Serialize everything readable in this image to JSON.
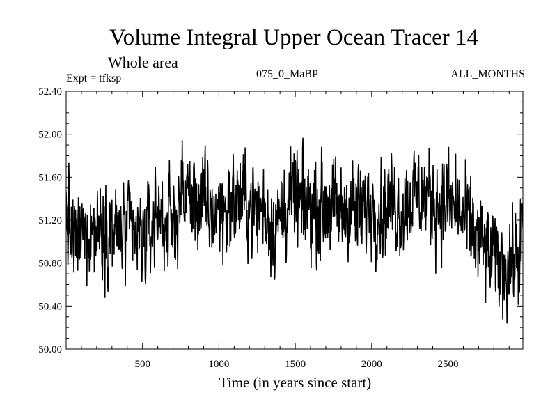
{
  "chart_data": {
    "type": "line",
    "title": "Volume Integral Upper Ocean Tracer 14",
    "subtitle": "Whole area",
    "info_left": "Expt = tfksp",
    "info_center": "075_0_MaBP",
    "info_right": "ALL_MONTHS",
    "xlabel": "Time (in years since start)",
    "ylabel": "",
    "xlim": [
      0,
      2990
    ],
    "ylim": [
      50.0,
      52.4
    ],
    "x_ticks": [
      500,
      1000,
      1500,
      2000,
      2500
    ],
    "x_tick_labels": [
      "500",
      "1000",
      "1500",
      "2000",
      "2500"
    ],
    "y_ticks": [
      50.0,
      50.4,
      50.8,
      51.2,
      51.6,
      52.0,
      52.4
    ],
    "y_tick_labels": [
      "50.00",
      "50.40",
      "50.80",
      "51.20",
      "51.60",
      "52.00",
      "52.40"
    ],
    "grid": false,
    "line_color": "#000000",
    "series": [
      {
        "name": "Volume Integral Upper Ocean Tracer 14",
        "x": [
          0,
          50,
          100,
          150,
          200,
          250,
          300,
          350,
          400,
          450,
          500,
          550,
          600,
          650,
          700,
          750,
          800,
          850,
          900,
          950,
          1000,
          1050,
          1100,
          1150,
          1200,
          1250,
          1300,
          1350,
          1400,
          1450,
          1500,
          1550,
          1600,
          1650,
          1700,
          1750,
          1800,
          1850,
          1900,
          1950,
          2000,
          2050,
          2100,
          2150,
          2200,
          2250,
          2300,
          2350,
          2400,
          2450,
          2500,
          2550,
          2600,
          2650,
          2700,
          2750,
          2800,
          2850,
          2900,
          2950,
          2990
        ],
        "y": [
          51.25,
          50.95,
          51.05,
          51.15,
          51.1,
          51.15,
          51.1,
          51.05,
          51.1,
          51.05,
          51.0,
          51.1,
          51.3,
          51.2,
          51.15,
          51.45,
          51.45,
          51.35,
          51.35,
          51.25,
          51.3,
          51.3,
          51.35,
          51.4,
          51.35,
          51.3,
          51.3,
          51.15,
          51.2,
          51.35,
          51.4,
          51.3,
          51.35,
          51.3,
          51.35,
          51.3,
          51.25,
          51.35,
          51.25,
          51.3,
          51.35,
          51.3,
          51.35,
          51.35,
          51.3,
          51.4,
          51.45,
          51.4,
          51.4,
          51.35,
          51.35,
          51.35,
          51.2,
          51.15,
          51.0,
          50.9,
          50.85,
          50.8,
          50.8,
          50.85,
          51.1
        ]
      }
    ]
  }
}
